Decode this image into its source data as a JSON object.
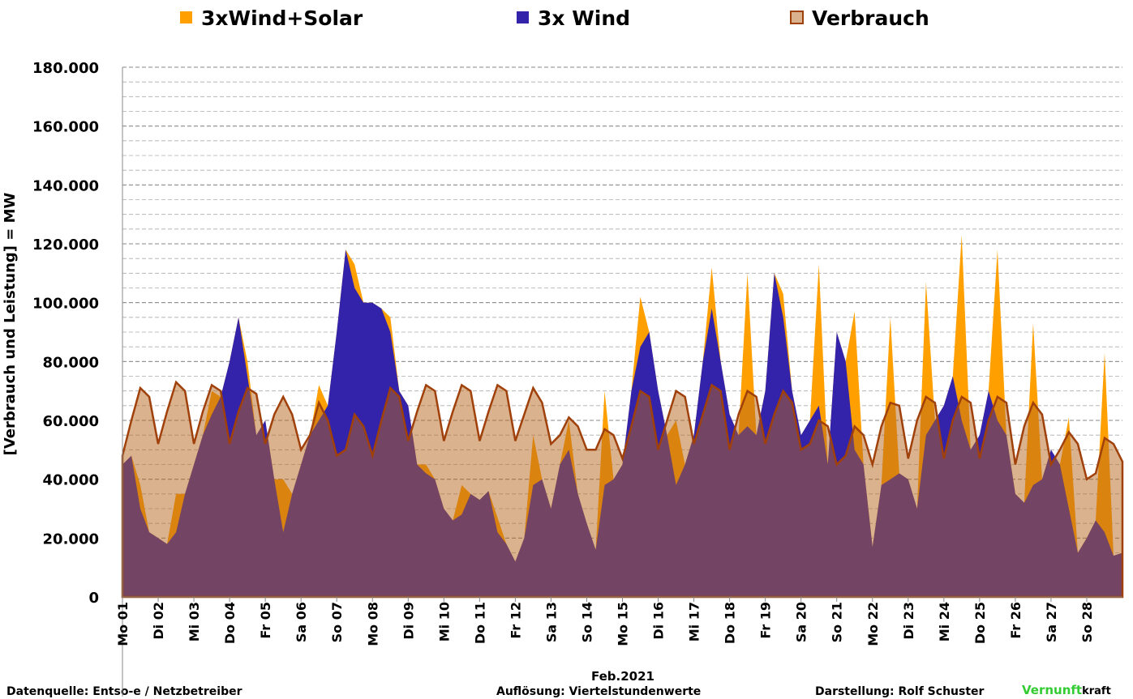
{
  "chart_data": {
    "type": "area",
    "legend": "top",
    "y_label": "[Verbrauch und Leistung] = MW",
    "x_label": "Feb.2021",
    "footer": {
      "source": "Datenquelle: Entso-e  / Netzbetreiber",
      "resolution": "Auflösung: Viertelstundenwerte",
      "author": "Darstellung:  Rolf Schuster",
      "logo_a": "Vernunft",
      "logo_b": "kraft"
    },
    "ylim": [
      0,
      180000
    ],
    "yticks": [
      {
        "value": 0,
        "label": "0"
      },
      {
        "value": 20000,
        "label": "20.000"
      },
      {
        "value": 40000,
        "label": "40.000"
      },
      {
        "value": 60000,
        "label": "60.000"
      },
      {
        "value": 80000,
        "label": "80.000"
      },
      {
        "value": 100000,
        "label": "100.000"
      },
      {
        "value": 120000,
        "label": "120.000"
      },
      {
        "value": 140000,
        "label": "140.000"
      },
      {
        "value": 160000,
        "label": "160.000"
      },
      {
        "value": 180000,
        "label": "180.000"
      }
    ],
    "minor_grid_step": 5000,
    "grid": true,
    "xlim": [
      0,
      28
    ],
    "xticks": [
      {
        "value": 0,
        "label": "Mo 01"
      },
      {
        "value": 1,
        "label": "Di 02"
      },
      {
        "value": 2,
        "label": "Mi 03"
      },
      {
        "value": 3,
        "label": "Do 04"
      },
      {
        "value": 4,
        "label": "Fr 05"
      },
      {
        "value": 5,
        "label": "Sa 06"
      },
      {
        "value": 6,
        "label": "So 07"
      },
      {
        "value": 7,
        "label": "Mo 08"
      },
      {
        "value": 8,
        "label": "Di 09"
      },
      {
        "value": 9,
        "label": "Mi 10"
      },
      {
        "value": 10,
        "label": "Do 11"
      },
      {
        "value": 11,
        "label": "Fr 12"
      },
      {
        "value": 12,
        "label": "Sa 13"
      },
      {
        "value": 13,
        "label": "So 14"
      },
      {
        "value": 14,
        "label": "Mo 15"
      },
      {
        "value": 15,
        "label": "Di 16"
      },
      {
        "value": 16,
        "label": "Mi 17"
      },
      {
        "value": 17,
        "label": "Do 18"
      },
      {
        "value": 18,
        "label": "Fr 19"
      },
      {
        "value": 19,
        "label": "Sa 20"
      },
      {
        "value": 20,
        "label": "So 21"
      },
      {
        "value": 21,
        "label": "Mo 22"
      },
      {
        "value": 22,
        "label": "Di 23"
      },
      {
        "value": 23,
        "label": "Mi 24"
      },
      {
        "value": 24,
        "label": "Do 25"
      },
      {
        "value": 25,
        "label": "Fr 26"
      },
      {
        "value": 26,
        "label": "Sa 27"
      },
      {
        "value": 27,
        "label": "So 28"
      }
    ],
    "x": [
      0,
      0.25,
      0.5,
      0.75,
      1,
      1.25,
      1.5,
      1.75,
      2,
      2.25,
      2.5,
      2.75,
      3,
      3.25,
      3.5,
      3.75,
      4,
      4.25,
      4.5,
      4.75,
      5,
      5.25,
      5.5,
      5.75,
      6,
      6.25,
      6.5,
      6.75,
      7,
      7.25,
      7.5,
      7.75,
      8,
      8.25,
      8.5,
      8.75,
      9,
      9.25,
      9.5,
      9.75,
      10,
      10.25,
      10.5,
      10.75,
      11,
      11.25,
      11.5,
      11.75,
      12,
      12.25,
      12.5,
      12.75,
      13,
      13.25,
      13.5,
      13.75,
      14,
      14.25,
      14.5,
      14.75,
      15,
      15.25,
      15.5,
      15.75,
      16,
      16.25,
      16.5,
      16.75,
      17,
      17.25,
      17.5,
      17.75,
      18,
      18.25,
      18.5,
      18.75,
      19,
      19.25,
      19.5,
      19.75,
      20,
      20.25,
      20.5,
      20.75,
      21,
      21.25,
      21.5,
      21.75,
      22,
      22.25,
      22.5,
      22.75,
      23,
      23.25,
      23.5,
      23.75,
      24,
      24.25,
      24.5,
      24.75,
      25,
      25.25,
      25.5,
      25.75,
      26,
      26.25,
      26.5,
      26.75,
      27,
      27.25,
      27.5,
      27.75,
      28
    ],
    "series": [
      {
        "name": "3xWind+Solar",
        "color": "#ffa000",
        "fill_opacity": 1,
        "values": [
          45000,
          48000,
          38000,
          22000,
          20000,
          18000,
          35000,
          35000,
          45000,
          55000,
          70000,
          68000,
          80000,
          95000,
          80000,
          55000,
          60000,
          40000,
          40000,
          35000,
          45000,
          55000,
          72000,
          65000,
          90000,
          118000,
          113000,
          100000,
          100000,
          98000,
          95000,
          70000,
          65000,
          45000,
          45000,
          40000,
          30000,
          26000,
          38000,
          35000,
          33000,
          36000,
          27000,
          18000,
          12000,
          20000,
          55000,
          40000,
          30000,
          45000,
          60000,
          35000,
          25000,
          16000,
          70000,
          40000,
          45000,
          70000,
          102000,
          90000,
          70000,
          55000,
          60000,
          45000,
          55000,
          80000,
          112000,
          80000,
          62000,
          55000,
          110000,
          55000,
          70000,
          110000,
          103000,
          70000,
          55000,
          60000,
          113000,
          45000,
          90000,
          80000,
          97000,
          45000,
          17000,
          38000,
          95000,
          42000,
          40000,
          30000,
          107000,
          60000,
          65000,
          75000,
          123000,
          50000,
          55000,
          70000,
          118000,
          55000,
          35000,
          32000,
          93000,
          40000,
          50000,
          45000,
          61000,
          15000,
          20000,
          26000,
          83000,
          14000,
          15000
        ]
      },
      {
        "name": "3x Wind",
        "color": "#3322aa",
        "fill_opacity": 1,
        "values": [
          45000,
          48000,
          30000,
          22000,
          20000,
          18000,
          22000,
          35000,
          45000,
          55000,
          62000,
          68000,
          80000,
          95000,
          75000,
          55000,
          60000,
          40000,
          22000,
          35000,
          45000,
          55000,
          60000,
          65000,
          90000,
          118000,
          105000,
          100000,
          100000,
          98000,
          90000,
          70000,
          65000,
          45000,
          42000,
          40000,
          30000,
          26000,
          28000,
          35000,
          33000,
          36000,
          22000,
          18000,
          12000,
          20000,
          38000,
          40000,
          30000,
          45000,
          50000,
          35000,
          25000,
          16000,
          38000,
          40000,
          45000,
          70000,
          85000,
          90000,
          70000,
          55000,
          38000,
          45000,
          55000,
          80000,
          98000,
          80000,
          62000,
          55000,
          58000,
          55000,
          70000,
          110000,
          95000,
          70000,
          55000,
          60000,
          65000,
          45000,
          90000,
          80000,
          50000,
          45000,
          17000,
          38000,
          40000,
          42000,
          40000,
          30000,
          55000,
          60000,
          65000,
          75000,
          60000,
          50000,
          55000,
          70000,
          60000,
          55000,
          35000,
          32000,
          38000,
          40000,
          50000,
          45000,
          30000,
          15000,
          20000,
          26000,
          22000,
          14000,
          15000
        ]
      },
      {
        "name": "Verbrauch",
        "color": "#b5651d",
        "line_color": "#a0400a",
        "fill_opacity": 0.5,
        "values": [
          48000,
          60000,
          71000,
          68000,
          52000,
          63000,
          73000,
          70000,
          52000,
          63000,
          72000,
          70000,
          52000,
          63000,
          71000,
          69000,
          52000,
          62000,
          68000,
          62000,
          50000,
          55000,
          66000,
          60000,
          48000,
          50000,
          62000,
          58000,
          48000,
          60000,
          71000,
          68000,
          53000,
          63000,
          72000,
          70000,
          53000,
          63000,
          72000,
          70000,
          53000,
          63000,
          72000,
          70000,
          53000,
          62000,
          71000,
          66000,
          52000,
          55000,
          61000,
          58000,
          50000,
          50000,
          57000,
          55000,
          47000,
          58000,
          70000,
          68000,
          50000,
          60000,
          70000,
          68000,
          52000,
          62000,
          72000,
          70000,
          50000,
          62000,
          70000,
          68000,
          52000,
          62000,
          70000,
          66000,
          50000,
          52000,
          60000,
          58000,
          45000,
          48000,
          58000,
          55000,
          45000,
          58000,
          66000,
          65000,
          47000,
          60000,
          68000,
          66000,
          47000,
          60000,
          68000,
          66000,
          47000,
          60000,
          68000,
          66000,
          45000,
          58000,
          66000,
          62000,
          45000,
          50000,
          56000,
          52000,
          40000,
          42000,
          54000,
          52000,
          46000
        ]
      }
    ]
  }
}
